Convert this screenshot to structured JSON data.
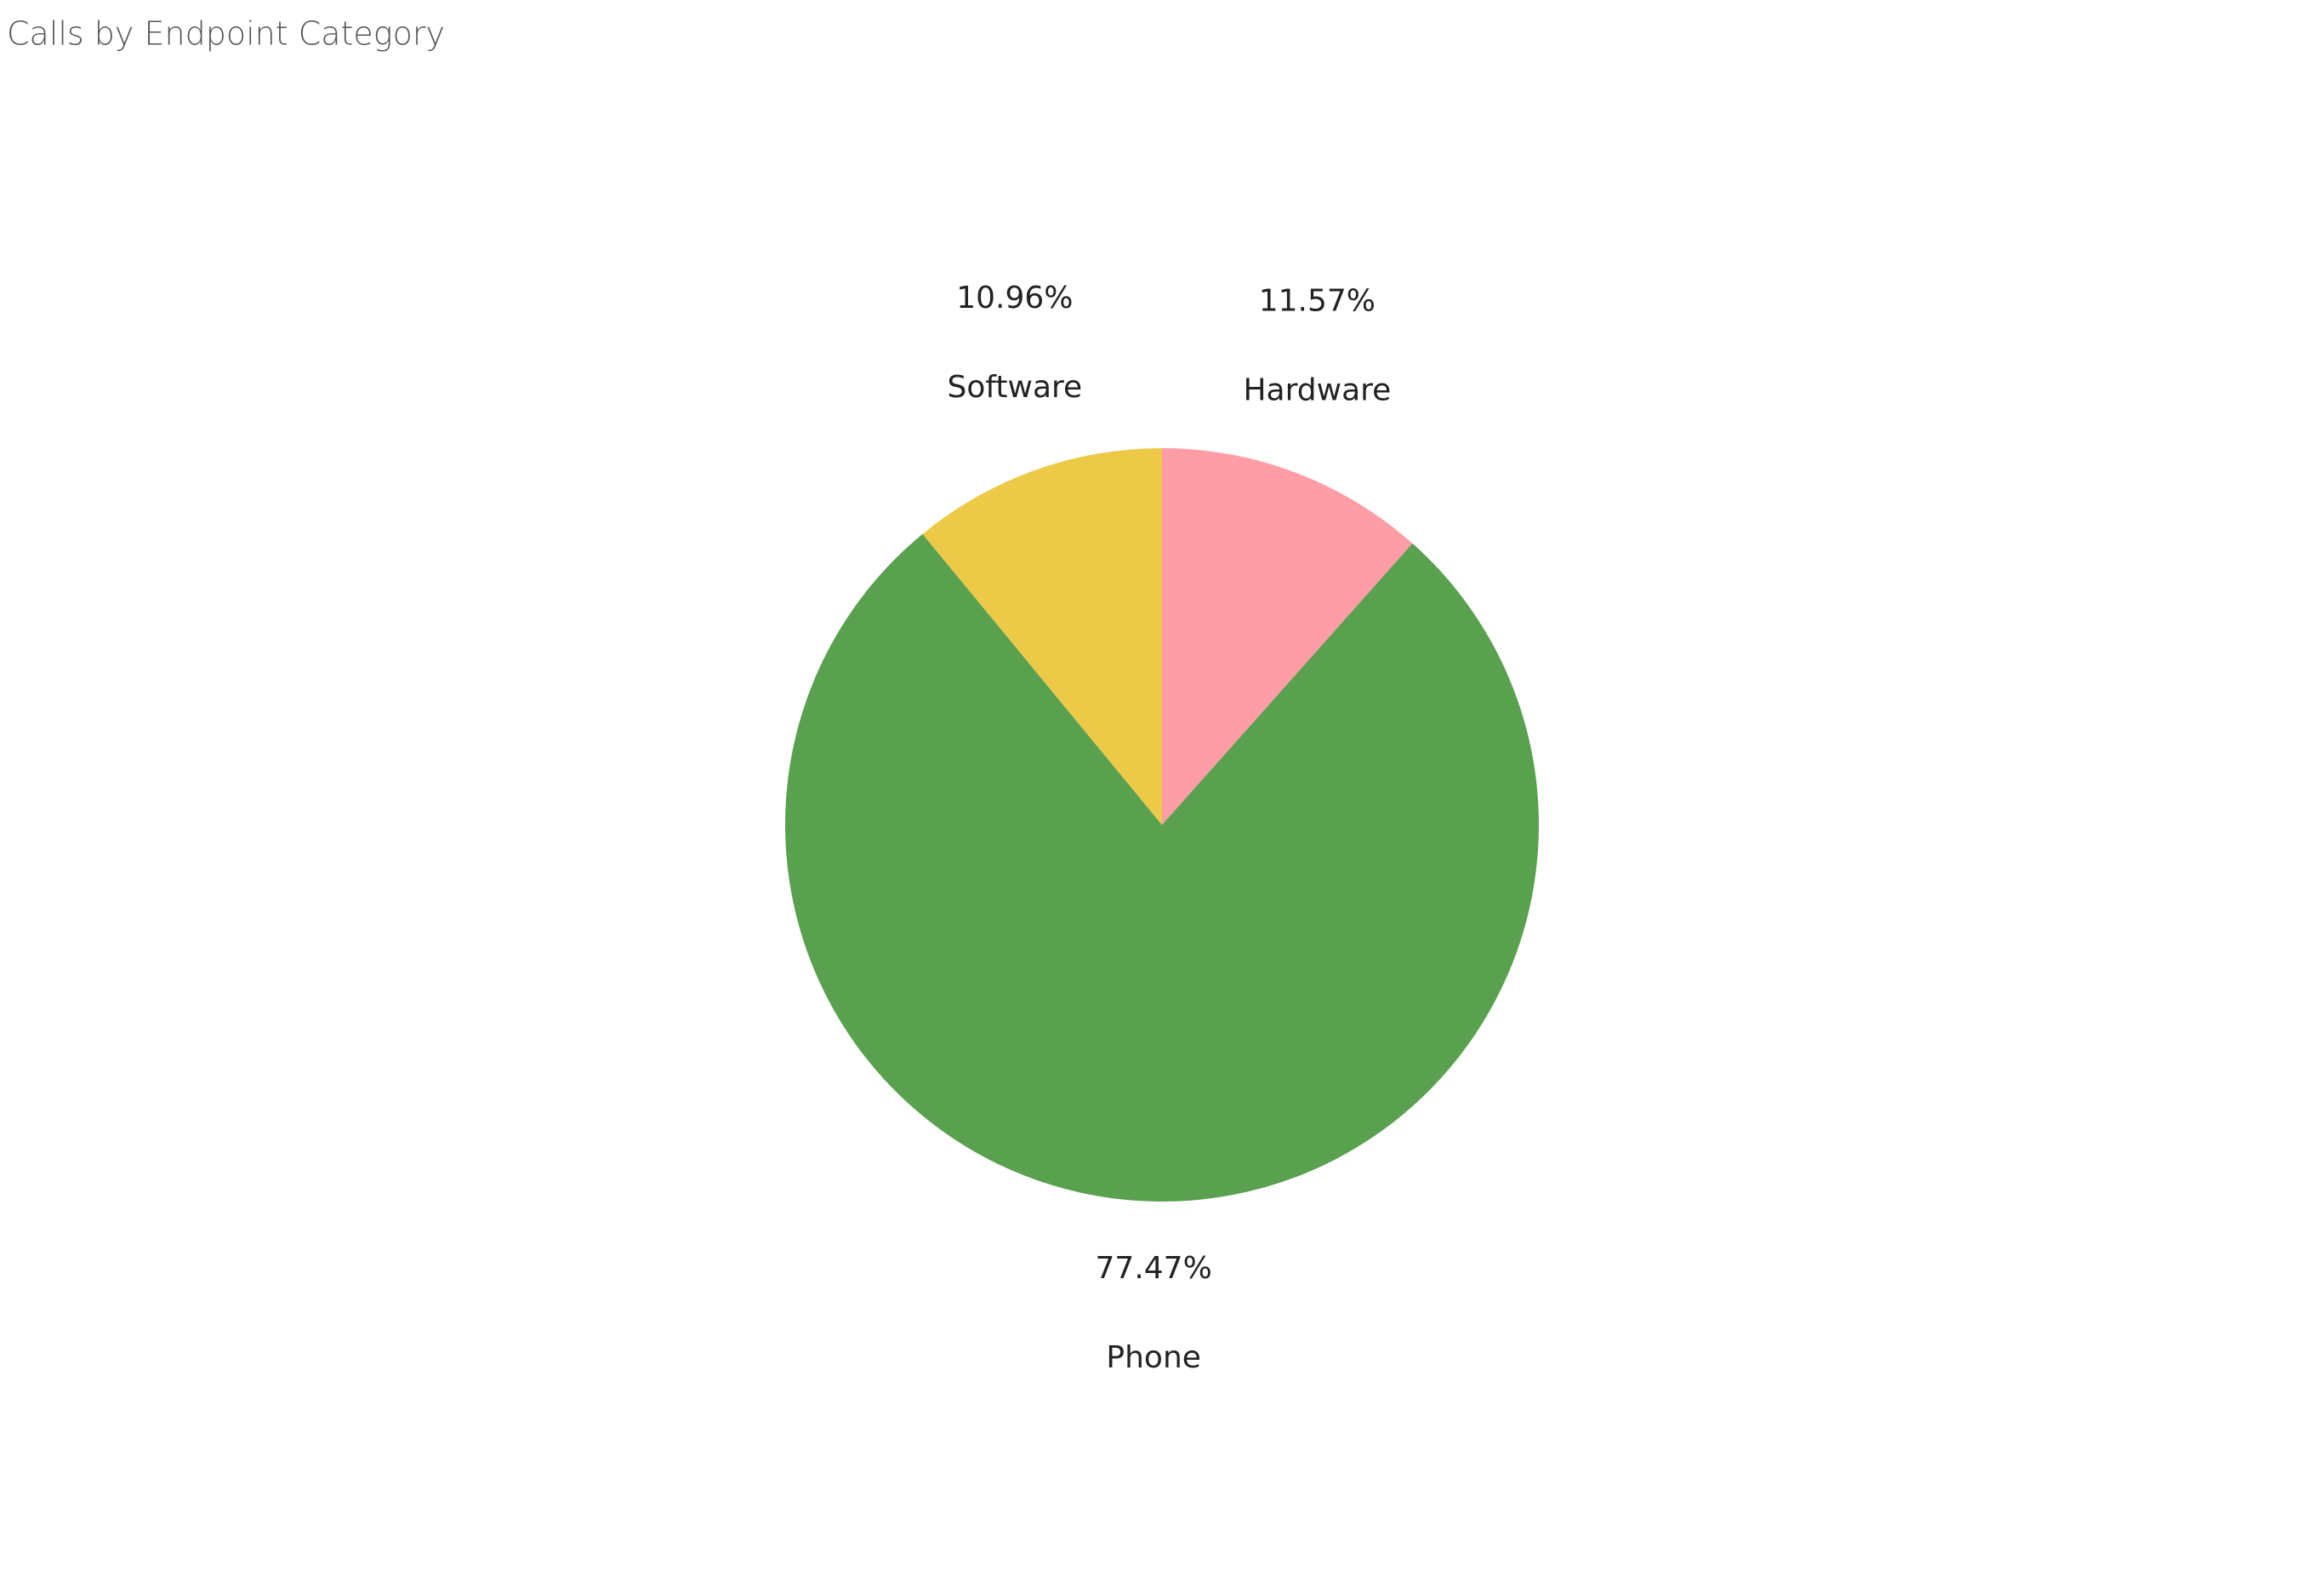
{
  "chart_data": {
    "type": "pie",
    "title": "Calls by Endpoint Category",
    "categories": [
      "Hardware",
      "Phone",
      "Software"
    ],
    "values": [
      11.57,
      77.47,
      10.96
    ],
    "value_labels": [
      "11.57%",
      "77.47%",
      "10.96%"
    ],
    "colors": [
      "#ff9da7",
      "#59a14f",
      "#edc948"
    ]
  }
}
